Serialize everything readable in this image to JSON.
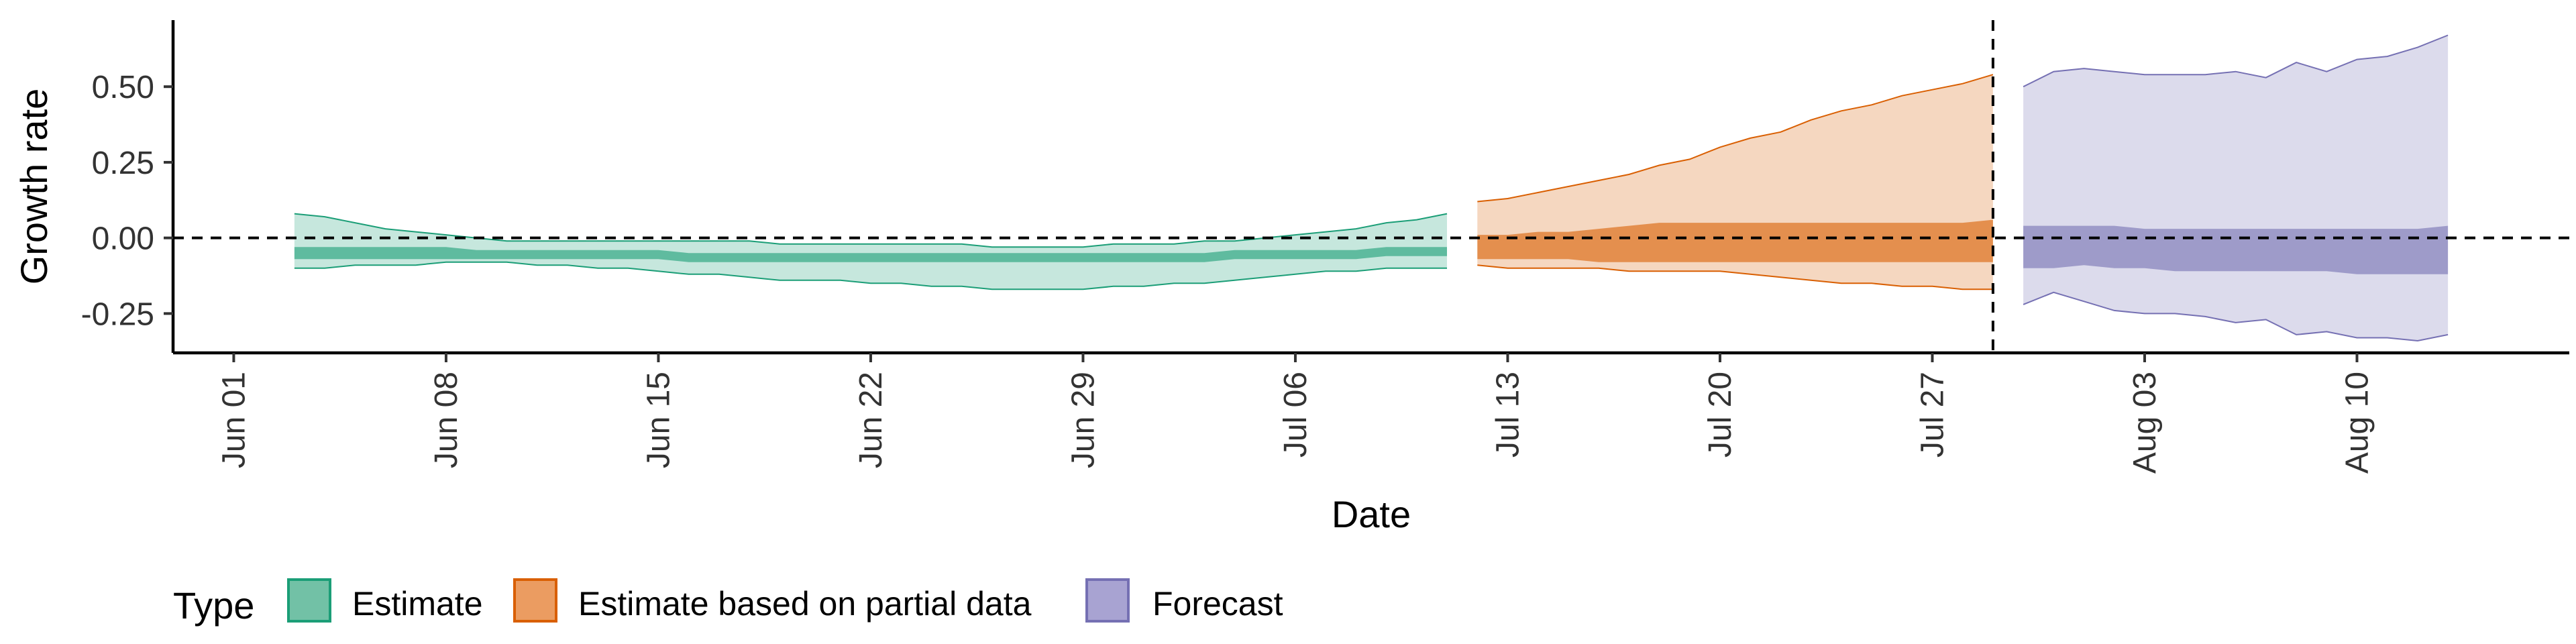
{
  "chart_data": {
    "type": "area",
    "xlabel": "Date",
    "ylabel": "Growth rate",
    "xlim": [
      "2020-05-30",
      "2020-08-17"
    ],
    "ylim": [
      -0.38,
      0.72
    ],
    "x_ticks": [
      "2020-06-01",
      "2020-06-08",
      "2020-06-15",
      "2020-06-22",
      "2020-06-29",
      "2020-07-06",
      "2020-07-13",
      "2020-07-20",
      "2020-07-27",
      "2020-08-03",
      "2020-08-10"
    ],
    "x_tick_labels": [
      "Jun 01",
      "Jun 08",
      "Jun 15",
      "Jun 22",
      "Jun 29",
      "Jul 06",
      "Jul 13",
      "Jul 20",
      "Jul 27",
      "Aug 03",
      "Aug 10"
    ],
    "y_ticks": [
      -0.25,
      0,
      0.25,
      0.5
    ],
    "y_tick_labels": [
      "-0.25",
      "0.00",
      "0.25",
      "0.50"
    ],
    "hline_y": 0,
    "vline_x": "2020-07-29",
    "legend": {
      "title": "Type",
      "placement": "bottom-left",
      "items": [
        {
          "label": "Estimate",
          "fill": "#72c1a6",
          "stroke": "#1b9e77"
        },
        {
          "label": "Estimate based on partial data",
          "fill": "#eb9c61",
          "stroke": "#d95f02"
        },
        {
          "label": "Forecast",
          "fill": "#a8a3d2",
          "stroke": "#7570b3"
        }
      ]
    },
    "series": [
      {
        "name": "Estimate",
        "fill": "#1b9e77",
        "stroke": "#1b9e77",
        "x": [
          "2020-06-03",
          "2020-06-04",
          "2020-06-05",
          "2020-06-06",
          "2020-06-07",
          "2020-06-08",
          "2020-06-09",
          "2020-06-10",
          "2020-06-11",
          "2020-06-12",
          "2020-06-13",
          "2020-06-14",
          "2020-06-15",
          "2020-06-16",
          "2020-06-17",
          "2020-06-18",
          "2020-06-19",
          "2020-06-20",
          "2020-06-21",
          "2020-06-22",
          "2020-06-23",
          "2020-06-24",
          "2020-06-25",
          "2020-06-26",
          "2020-06-27",
          "2020-06-28",
          "2020-06-29",
          "2020-06-30",
          "2020-07-01",
          "2020-07-02",
          "2020-07-03",
          "2020-07-04",
          "2020-07-05",
          "2020-07-06",
          "2020-07-07",
          "2020-07-08",
          "2020-07-09",
          "2020-07-10",
          "2020-07-11"
        ],
        "upper90": [
          0.08,
          0.07,
          0.05,
          0.03,
          0.02,
          0.01,
          0.0,
          -0.01,
          -0.01,
          -0.01,
          -0.01,
          -0.01,
          -0.01,
          -0.01,
          -0.01,
          -0.01,
          -0.02,
          -0.02,
          -0.02,
          -0.02,
          -0.02,
          -0.02,
          -0.02,
          -0.03,
          -0.03,
          -0.03,
          -0.03,
          -0.02,
          -0.02,
          -0.02,
          -0.01,
          -0.01,
          0.0,
          0.01,
          0.02,
          0.03,
          0.05,
          0.06,
          0.08
        ],
        "upper50": [
          -0.03,
          -0.03,
          -0.03,
          -0.03,
          -0.03,
          -0.03,
          -0.04,
          -0.04,
          -0.04,
          -0.04,
          -0.04,
          -0.04,
          -0.04,
          -0.05,
          -0.05,
          -0.05,
          -0.05,
          -0.05,
          -0.05,
          -0.05,
          -0.05,
          -0.05,
          -0.05,
          -0.05,
          -0.05,
          -0.05,
          -0.05,
          -0.05,
          -0.05,
          -0.05,
          -0.05,
          -0.04,
          -0.04,
          -0.04,
          -0.04,
          -0.04,
          -0.03,
          -0.03,
          -0.03
        ],
        "lower50": [
          -0.07,
          -0.07,
          -0.07,
          -0.07,
          -0.07,
          -0.07,
          -0.07,
          -0.07,
          -0.07,
          -0.07,
          -0.07,
          -0.07,
          -0.07,
          -0.08,
          -0.08,
          -0.08,
          -0.08,
          -0.08,
          -0.08,
          -0.08,
          -0.08,
          -0.08,
          -0.08,
          -0.08,
          -0.08,
          -0.08,
          -0.08,
          -0.08,
          -0.08,
          -0.08,
          -0.08,
          -0.07,
          -0.07,
          -0.07,
          -0.07,
          -0.07,
          -0.06,
          -0.06,
          -0.06
        ],
        "lower90": [
          -0.1,
          -0.1,
          -0.09,
          -0.09,
          -0.09,
          -0.08,
          -0.08,
          -0.08,
          -0.09,
          -0.09,
          -0.1,
          -0.1,
          -0.11,
          -0.12,
          -0.12,
          -0.13,
          -0.14,
          -0.14,
          -0.14,
          -0.15,
          -0.15,
          -0.16,
          -0.16,
          -0.17,
          -0.17,
          -0.17,
          -0.17,
          -0.16,
          -0.16,
          -0.15,
          -0.15,
          -0.14,
          -0.13,
          -0.12,
          -0.11,
          -0.11,
          -0.1,
          -0.1,
          -0.1
        ]
      },
      {
        "name": "Estimate based on partial data",
        "fill": "#d95f02",
        "stroke": "#d95f02",
        "x": [
          "2020-07-12",
          "2020-07-13",
          "2020-07-14",
          "2020-07-15",
          "2020-07-16",
          "2020-07-17",
          "2020-07-18",
          "2020-07-19",
          "2020-07-20",
          "2020-07-21",
          "2020-07-22",
          "2020-07-23",
          "2020-07-24",
          "2020-07-25",
          "2020-07-26",
          "2020-07-27",
          "2020-07-28",
          "2020-07-29"
        ],
        "upper90": [
          0.12,
          0.13,
          0.15,
          0.17,
          0.19,
          0.21,
          0.24,
          0.26,
          0.3,
          0.33,
          0.35,
          0.39,
          0.42,
          0.44,
          0.47,
          0.49,
          0.51,
          0.54
        ],
        "upper50": [
          0.01,
          0.01,
          0.02,
          0.02,
          0.03,
          0.04,
          0.05,
          0.05,
          0.05,
          0.05,
          0.05,
          0.05,
          0.05,
          0.05,
          0.05,
          0.05,
          0.05,
          0.06
        ],
        "lower50": [
          -0.07,
          -0.07,
          -0.07,
          -0.07,
          -0.08,
          -0.08,
          -0.08,
          -0.08,
          -0.08,
          -0.08,
          -0.08,
          -0.08,
          -0.08,
          -0.08,
          -0.08,
          -0.08,
          -0.08,
          -0.08
        ],
        "lower90": [
          -0.09,
          -0.1,
          -0.1,
          -0.1,
          -0.1,
          -0.11,
          -0.11,
          -0.11,
          -0.11,
          -0.12,
          -0.13,
          -0.14,
          -0.15,
          -0.15,
          -0.16,
          -0.16,
          -0.17,
          -0.17
        ]
      },
      {
        "name": "Forecast",
        "fill": "#7570b3",
        "stroke": "#7570b3",
        "x": [
          "2020-07-30",
          "2020-07-31",
          "2020-08-01",
          "2020-08-02",
          "2020-08-03",
          "2020-08-04",
          "2020-08-05",
          "2020-08-06",
          "2020-08-07",
          "2020-08-08",
          "2020-08-09",
          "2020-08-10",
          "2020-08-11",
          "2020-08-12",
          "2020-08-13"
        ],
        "upper90": [
          0.5,
          0.55,
          0.56,
          0.55,
          0.54,
          0.54,
          0.54,
          0.55,
          0.53,
          0.58,
          0.55,
          0.59,
          0.6,
          0.63,
          0.67
        ],
        "upper50": [
          0.04,
          0.04,
          0.04,
          0.04,
          0.03,
          0.03,
          0.03,
          0.03,
          0.03,
          0.03,
          0.03,
          0.03,
          0.03,
          0.03,
          0.04
        ],
        "lower50": [
          -0.1,
          -0.1,
          -0.09,
          -0.1,
          -0.1,
          -0.11,
          -0.11,
          -0.11,
          -0.11,
          -0.11,
          -0.11,
          -0.12,
          -0.12,
          -0.12,
          -0.12
        ],
        "lower90": [
          -0.22,
          -0.18,
          -0.21,
          -0.24,
          -0.25,
          -0.25,
          -0.26,
          -0.28,
          -0.27,
          -0.32,
          -0.31,
          -0.33,
          -0.33,
          -0.34,
          -0.32
        ]
      }
    ]
  }
}
